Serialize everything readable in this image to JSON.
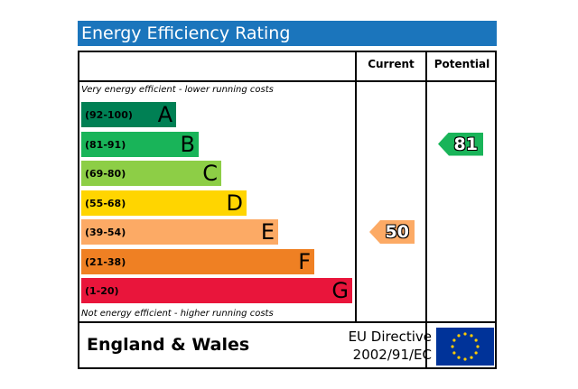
{
  "title": "Energy Efficiency Rating",
  "columns": {
    "current": "Current",
    "potential": "Potential"
  },
  "top_description": "Very energy efficient - lower running costs",
  "bottom_description": "Not energy efficient - higher running costs",
  "footer": {
    "region": "England & Wales",
    "directive_line1": "EU Directive",
    "directive_line2": "2002/91/EC"
  },
  "chart_data": {
    "type": "bar",
    "categories": [
      "A",
      "B",
      "C",
      "D",
      "E",
      "F",
      "G"
    ],
    "ranges": [
      "(92-100)",
      "(81-91)",
      "(69-80)",
      "(55-68)",
      "(39-54)",
      "(21-38)",
      "(1-20)"
    ],
    "band_colors": [
      "#008054",
      "#19b459",
      "#8dce46",
      "#ffd500",
      "#fcaa65",
      "#ef8023",
      "#e9153b"
    ],
    "current": {
      "value": 50,
      "band": "E",
      "color": "#fcaa65"
    },
    "potential": {
      "value": 81,
      "band": "B",
      "color": "#19b459"
    }
  }
}
